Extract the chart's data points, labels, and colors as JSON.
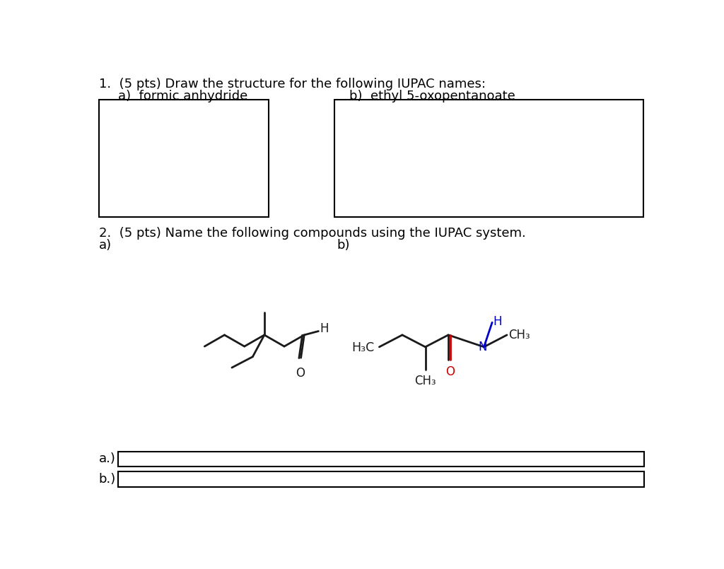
{
  "title_q1": "1.  (5 pts) Draw the structure for the following IUPAC names:",
  "q1a_label": "a)  formic anhydride",
  "q1b_label": "b)  ethyl 5-oxopentanoate",
  "title_q2": "2.  (5 pts) Name the following compounds using the IUPAC system.",
  "q2a_label": "a)",
  "q2b_label": "b)",
  "ans_a_label": "a.)",
  "ans_b_label": "b.)",
  "bg_color": "#ffffff",
  "text_color": "#000000",
  "bond_color": "#1a1a1a",
  "red_color": "#cc0000",
  "blue_color": "#0000cc"
}
